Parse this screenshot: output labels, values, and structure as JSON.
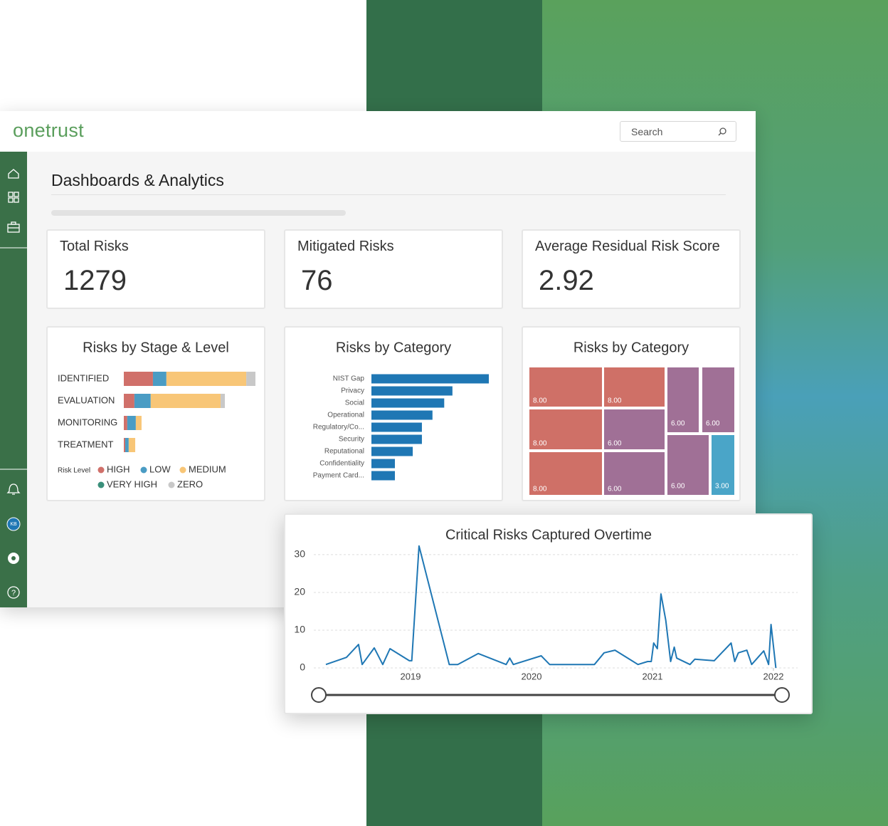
{
  "header": {
    "logo": "onetrust",
    "search_placeholder": "Search"
  },
  "sidebar": {
    "avatar": "KB"
  },
  "page": {
    "title": "Dashboards & Analytics"
  },
  "kpis": [
    {
      "label": "Total Risks",
      "value": 1279
    },
    {
      "label": "Mitigated Risks",
      "value": 76
    },
    {
      "label": "Average Residual Risk Score",
      "value": 2.92
    }
  ],
  "chart_data": [
    {
      "type": "bar",
      "horizontal": true,
      "stacked": true,
      "title": "Risks by Stage & Level",
      "categories": [
        "IDENTIFIED",
        "EVALUATION",
        "MONITORING",
        "TREATMENT"
      ],
      "legend_title": "Risk Level",
      "series": [
        {
          "name": "HIGH",
          "color": "#d0706a",
          "values": [
            143,
            52,
            17,
            7
          ]
        },
        {
          "name": "LOW",
          "color": "#4a9cc4",
          "values": [
            66,
            80,
            42,
            17
          ]
        },
        {
          "name": "MEDIUM",
          "color": "#f8c677",
          "values": [
            392,
            343,
            28,
            32
          ]
        },
        {
          "name": "VERY HIGH",
          "color": "#3a8f7a",
          "values": [
            0,
            0,
            0,
            0
          ]
        },
        {
          "name": "ZERO",
          "color": "#c8c8c8",
          "values": [
            45,
            21,
            0,
            0
          ]
        }
      ]
    },
    {
      "type": "bar",
      "horizontal": true,
      "title": "Risks by Category",
      "color": "#1f77b4",
      "categories": [
        "NIST Gap",
        "Privacy",
        "Social",
        "Operational",
        "Regulatory/Co...",
        "Security",
        "Reputational",
        "Confidentiality",
        "Payment Card..."
      ],
      "values": [
        50,
        34.5,
        31,
        26,
        21.5,
        21.5,
        17.6,
        10,
        10
      ]
    },
    {
      "type": "treemap",
      "title": "Risks by Category",
      "values": [
        8,
        8,
        8,
        8,
        6,
        6,
        6,
        6,
        6,
        3
      ],
      "value_labels": [
        "8.00",
        "8.00",
        "8.00",
        "8.00",
        "6.00",
        "6.00",
        "6.00",
        "6.00",
        "6.00",
        "3.00"
      ],
      "colors": [
        "#cf7067",
        "#cf7067",
        "#cf7067",
        "#cf7067",
        "#a07096",
        "#a07096",
        "#a07096",
        "#a07096",
        "#a07096",
        "#4aa5c8"
      ]
    },
    {
      "type": "line",
      "title": "Critical Risks Captured Overtime",
      "color": "#1f77b4",
      "grid": true,
      "x": [
        2018.3,
        2018.47,
        2018.57,
        2018.6,
        2018.7,
        2018.77,
        2018.83,
        2018.99,
        2019.01,
        2019.07,
        2019.32,
        2019.39,
        2019.56,
        2019.79,
        2019.82,
        2019.85,
        2020.08,
        2020.15,
        2020.52,
        2020.6,
        2020.69,
        2020.88,
        2020.96,
        2020.99,
        2021.01,
        2021.04,
        2021.07,
        2021.11,
        2021.15,
        2021.18,
        2021.2,
        2021.31,
        2021.35,
        2021.51,
        2021.65,
        2021.68,
        2021.71,
        2021.78,
        2021.82,
        2021.92,
        2021.96,
        2021.98,
        2022.02
      ],
      "values": [
        0.9,
        2.8,
        6.2,
        0.9,
        5.3,
        0.9,
        5.1,
        1.9,
        1.9,
        32.3,
        0.9,
        0.9,
        3.8,
        0.9,
        2.6,
        0.9,
        3.2,
        0.9,
        0.9,
        4.0,
        4.7,
        0.9,
        1.7,
        1.7,
        6.6,
        5.1,
        19.6,
        12.6,
        1.7,
        5.5,
        2.6,
        0.9,
        2.3,
        1.9,
        6.6,
        1.7,
        4.0,
        4.7,
        0.9,
        4.5,
        0.9,
        11.5,
        0
      ],
      "xlim": [
        2018.2,
        2022.2
      ],
      "ylim": [
        0,
        33
      ],
      "xticks": [
        2019,
        2020,
        2021,
        2022
      ],
      "yticks": [
        0,
        10,
        20,
        30
      ]
    }
  ]
}
